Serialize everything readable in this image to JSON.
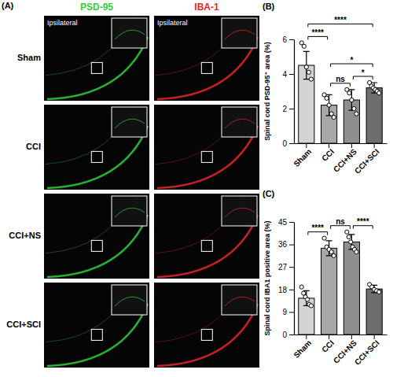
{
  "panel_a": {
    "label": "(A)",
    "columns": [
      "PSD-95",
      "IBA-1"
    ],
    "column_colors": [
      "#2fcf3a",
      "#e8262a"
    ],
    "rows": [
      "Sham",
      "CCI",
      "CCI+NS",
      "CCI+SCI"
    ],
    "inset_label": "Ipsilateral"
  },
  "chart_data": [
    {
      "type": "bar",
      "panel": "(B)",
      "ylabel": "Spinal cord PSD-95⁺ area (%)",
      "categories": [
        "Sham",
        "CCI",
        "CCI+NS",
        "CCI+SCI"
      ],
      "values": [
        4.5,
        2.2,
        2.5,
        3.2
      ],
      "errors": [
        0.8,
        0.6,
        0.6,
        0.3
      ],
      "points": [
        [
          5.8,
          5.6,
          4.4,
          4.1,
          3.7
        ],
        [
          2.8,
          2.6,
          2.2,
          1.7,
          1.5
        ],
        [
          3.1,
          2.9,
          2.5,
          2.0,
          1.7
        ],
        [
          3.5,
          3.3,
          3.2,
          3.1,
          3.0,
          2.9
        ]
      ],
      "colors": [
        "#d4d4d4",
        "#a8a8a8",
        "#8f8f8f",
        "#6e6e6e"
      ],
      "ylim": [
        0,
        6
      ],
      "yticks": [
        0,
        2,
        4,
        6
      ],
      "comparisons": [
        {
          "groups": [
            0,
            1
          ],
          "label": "****"
        },
        {
          "groups": [
            0,
            3
          ],
          "label": "****"
        },
        {
          "groups": [
            1,
            2
          ],
          "label": "ns"
        },
        {
          "groups": [
            1,
            3
          ],
          "label": "*"
        },
        {
          "groups": [
            2,
            3
          ],
          "label": "*"
        }
      ]
    },
    {
      "type": "bar",
      "panel": "(C)",
      "ylabel": "Spinal cord IBA1 positive area (%)",
      "categories": [
        "Sham",
        "CCI",
        "CCI+NS",
        "CCI+SCI"
      ],
      "values": [
        14.5,
        34.5,
        37,
        18.2
      ],
      "errors": [
        3,
        3,
        3,
        1.5
      ],
      "points": [
        [
          19,
          16.5,
          15,
          14,
          12,
          11.5
        ],
        [
          38.5,
          35,
          34,
          33,
          31.5
        ],
        [
          41,
          39,
          37,
          35,
          34,
          33
        ],
        [
          20,
          19,
          18,
          17.5,
          17
        ]
      ],
      "colors": [
        "#d4d4d4",
        "#a8a8a8",
        "#8f8f8f",
        "#6e6e6e"
      ],
      "ylim": [
        0,
        45
      ],
      "yticks": [
        0,
        9,
        18,
        27,
        36,
        45
      ],
      "comparisons": [
        {
          "groups": [
            0,
            1
          ],
          "label": "****"
        },
        {
          "groups": [
            1,
            2
          ],
          "label": "ns"
        },
        {
          "groups": [
            2,
            3
          ],
          "label": "****"
        }
      ]
    }
  ]
}
